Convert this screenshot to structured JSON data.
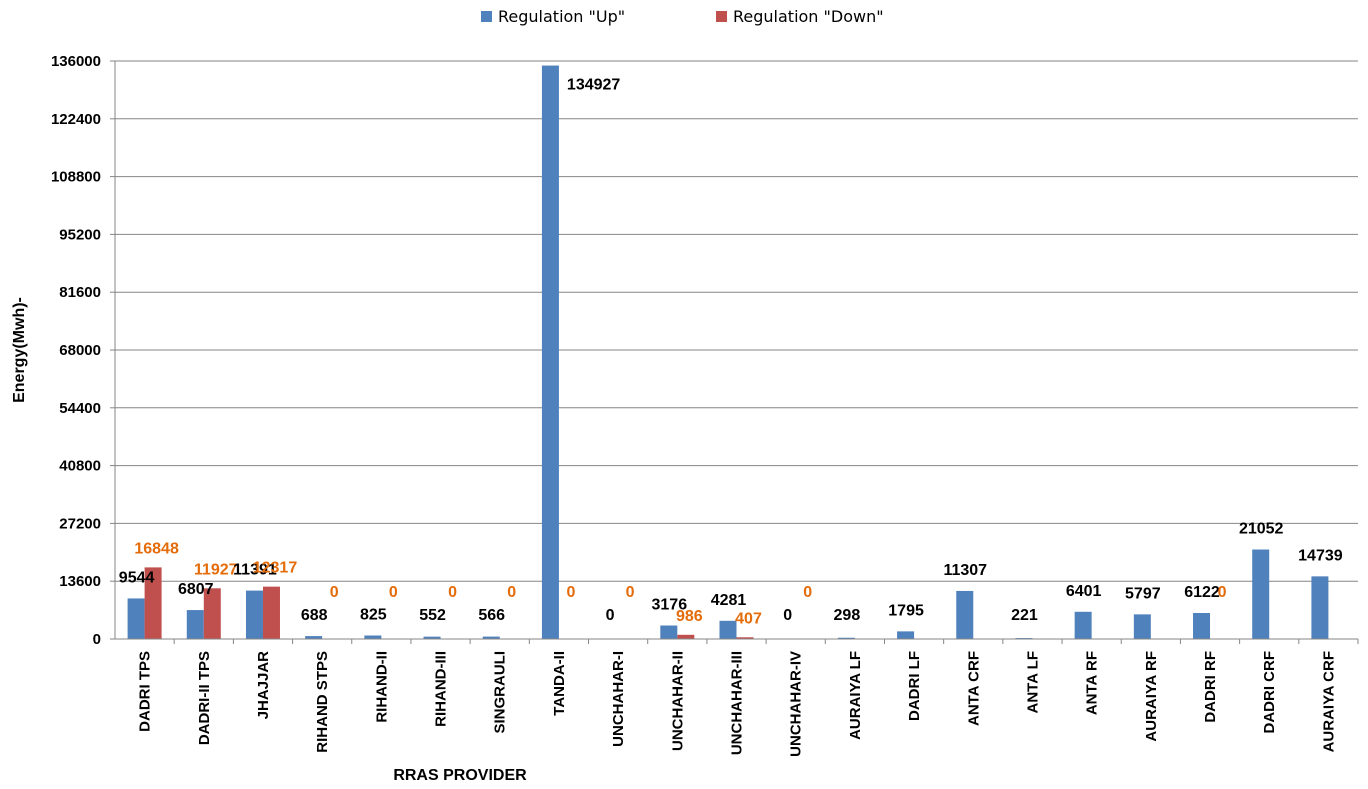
{
  "chart_data": {
    "type": "bar",
    "title": "",
    "xlabel": "RRAS PROVIDER",
    "ylabel": "Energy(Mwh)-",
    "ylim": [
      0,
      136000
    ],
    "yticks": [
      0,
      13600,
      27200,
      40800,
      54400,
      68000,
      81600,
      95200,
      108800,
      122400,
      136000
    ],
    "grid": true,
    "legend_position": "top-center",
    "categories": [
      "DADRI TPS",
      "DADRI-II TPS",
      "JHAJJAR",
      "RIHAND STPS",
      "RIHAND-II",
      "RIHAND-III",
      "SINGRAULI",
      "TANDA-II",
      "UNCHAHAR-I",
      "UNCHAHAR-II",
      "UNCHAHAR-III",
      "UNCHAHAR-IV",
      "AURAIYA LF",
      "DADRI LF",
      "ANTA CRF",
      "ANTA LF",
      "ANTA RF",
      "AURAIYA RF",
      "DADRI RF",
      "DADRI CRF",
      "AURAIYA CRF"
    ],
    "series": [
      {
        "name": "Regulation \"Up\"",
        "color": "#4F81BD",
        "label_color": "#000000",
        "values": [
          9544,
          6807,
          11391,
          688,
          825,
          552,
          566,
          134927,
          0,
          3176,
          4281,
          0,
          298,
          1795,
          11307,
          221,
          6401,
          5797,
          6122,
          21052,
          14739
        ]
      },
      {
        "name": "Regulation \"Down\"",
        "color": "#C0504D",
        "label_color": "#E46C0A",
        "values": [
          16848,
          11927,
          12317,
          0,
          0,
          0,
          0,
          0,
          0,
          986,
          407,
          0,
          null,
          null,
          null,
          null,
          null,
          null,
          0,
          null,
          null
        ]
      }
    ]
  }
}
